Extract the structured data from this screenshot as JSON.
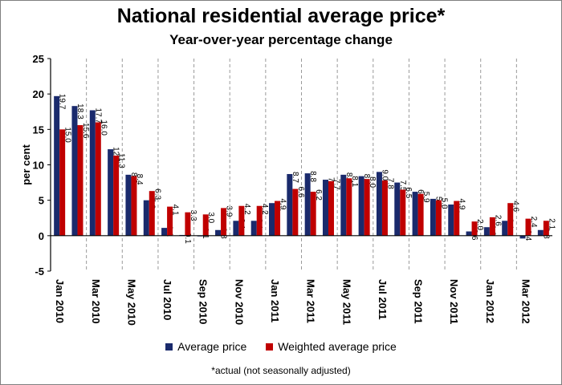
{
  "chart_data": {
    "type": "bar",
    "title": "National residential average price*",
    "subtitle": "Year-over-year percentage change",
    "xlabel": "",
    "ylabel": "per cent",
    "ylim": [
      -5,
      25
    ],
    "yticks": [
      -5,
      0,
      5,
      10,
      15,
      20,
      25
    ],
    "grid": false,
    "legend_position": "bottom",
    "categories": [
      "Jan 2010",
      "Feb 2010",
      "Mar 2010",
      "Apr 2010",
      "May 2010",
      "Jun 2010",
      "Jul 2010",
      "Aug 2010",
      "Sep 2010",
      "Oct 2010",
      "Nov 2010",
      "Dec 2010",
      "Jan 2011",
      "Feb 2011",
      "Mar 2011",
      "Apr 2011",
      "May 2011",
      "Jun 2011",
      "Jul 2011",
      "Aug 2011",
      "Sep 2011",
      "Oct 2011",
      "Nov 2011",
      "Dec 2011",
      "Jan 2012",
      "Feb 2012",
      "Mar 2012",
      "Apr 2012"
    ],
    "tick_labels": [
      "Jan 2010",
      "",
      "Mar 2010",
      "",
      "May 2010",
      "",
      "Jul 2010",
      "",
      "Sep 2010",
      "",
      "Nov 2010",
      "",
      "Jan 2011",
      "",
      "Mar 2011",
      "",
      "May 2011",
      "",
      "Jul 2011",
      "",
      "Sep 2011",
      "",
      "Nov 2011",
      "",
      "Jan 2012",
      "",
      "Mar 2012",
      ""
    ],
    "series": [
      {
        "name": "Average price",
        "color": "#1a2a6c",
        "values": [
          19.7,
          18.3,
          17.7,
          12.2,
          8.6,
          5.0,
          1.1,
          0.1,
          -0.1,
          0.8,
          2.1,
          2.1,
          4.6,
          8.7,
          8.8,
          7.9,
          8.6,
          8.4,
          9.0,
          7.5,
          6.2,
          5.2,
          4.4,
          0.6,
          1.2,
          2.1,
          -0.4,
          0.8
        ]
      },
      {
        "name": "Weighted average price",
        "color": "#c00000",
        "values": [
          15.0,
          15.6,
          16.0,
          11.3,
          8.4,
          6.3,
          4.1,
          3.3,
          3.0,
          3.9,
          4.2,
          4.2,
          4.9,
          6.6,
          6.2,
          7.7,
          8.1,
          8.0,
          7.8,
          6.5,
          5.9,
          5.0,
          4.9,
          2.0,
          2.6,
          4.6,
          2.4,
          2.1
        ]
      }
    ],
    "footnote": "*actual (not seasonally adjusted)"
  }
}
